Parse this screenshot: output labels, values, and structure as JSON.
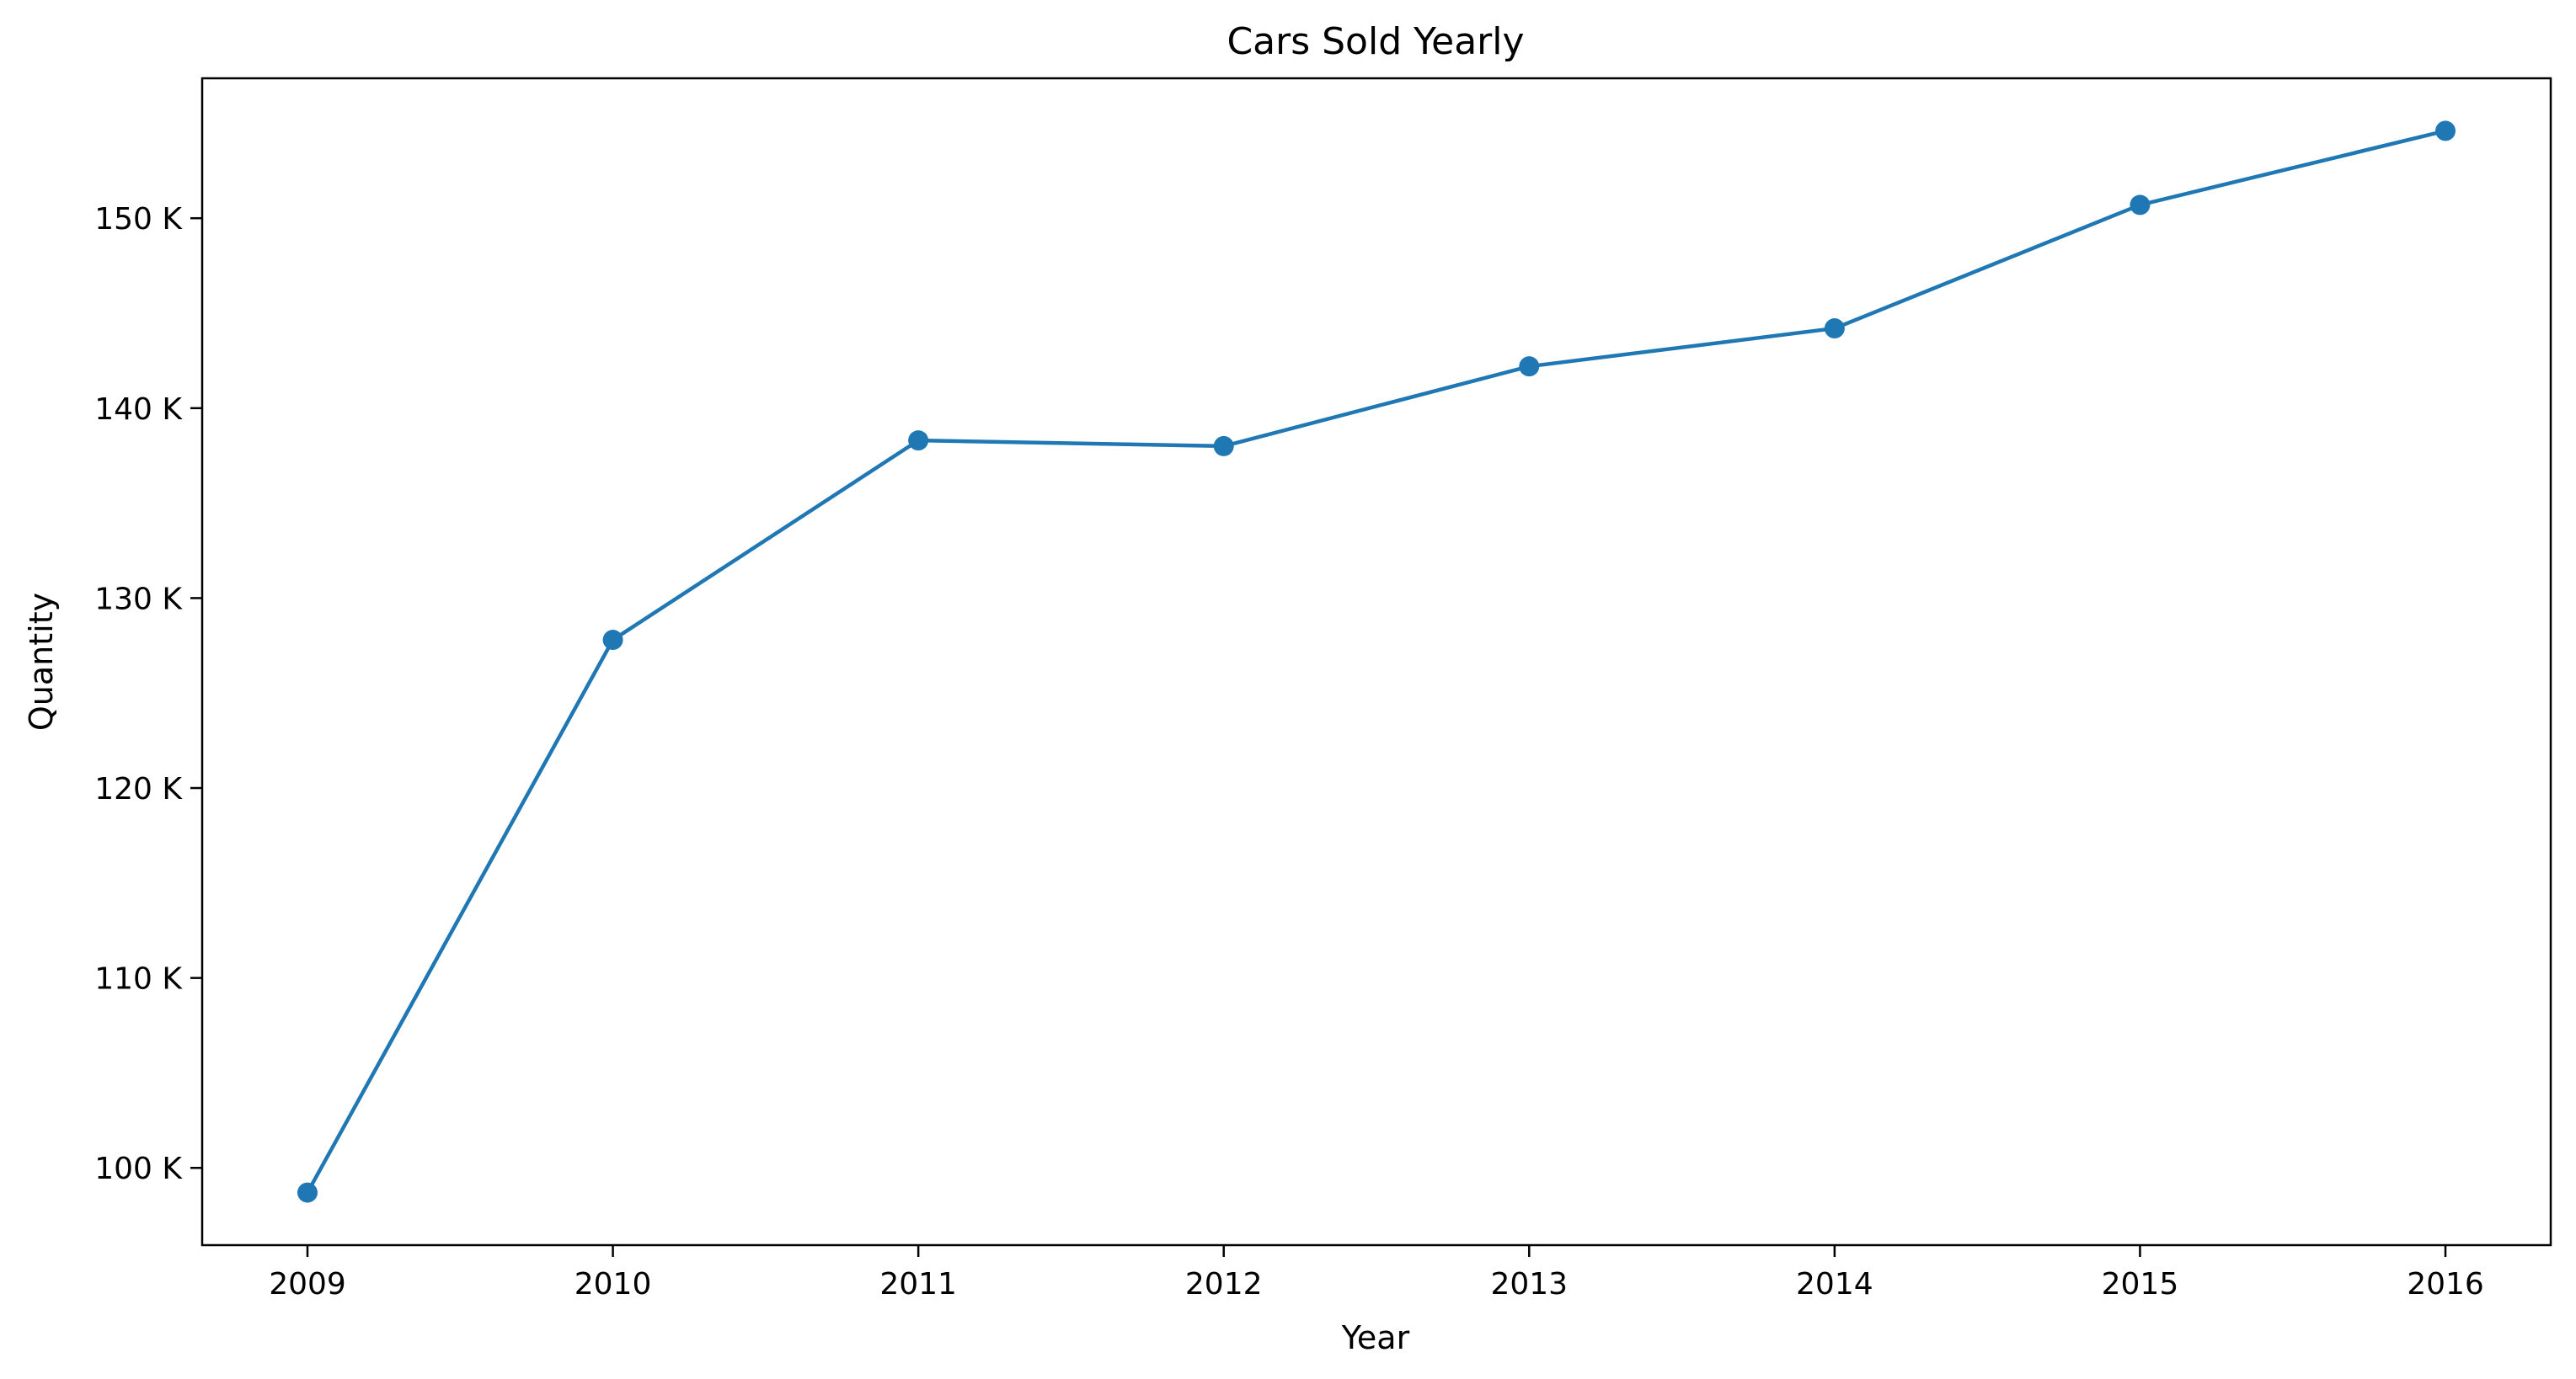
{
  "chart_data": {
    "type": "line",
    "title": "Cars Sold Yearly",
    "xlabel": "Year",
    "ylabel": "Quantity",
    "x": [
      "2009",
      "2010",
      "2011",
      "2012",
      "2013",
      "2014",
      "2015",
      "2016"
    ],
    "series": [
      {
        "values": [
          98700,
          127800,
          138300,
          138000,
          142200,
          144200,
          150700,
          154600
        ],
        "color": "#1f77b4",
        "marker": "circle"
      }
    ],
    "yticks": [
      100000,
      110000,
      120000,
      130000,
      140000,
      150000
    ],
    "ytick_labels": [
      "100 K",
      "110 K",
      "120 K",
      "130 K",
      "140 K",
      "150 K"
    ],
    "ylim": [
      95933,
      157367
    ],
    "grid": false,
    "legend": "none"
  }
}
